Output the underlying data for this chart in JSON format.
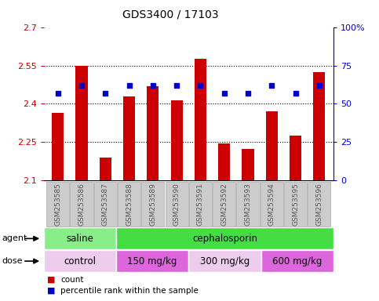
{
  "title": "GDS3400 / 17103",
  "samples": [
    "GSM253585",
    "GSM253586",
    "GSM253587",
    "GSM253588",
    "GSM253589",
    "GSM253590",
    "GSM253591",
    "GSM253592",
    "GSM253593",
    "GSM253594",
    "GSM253595",
    "GSM253596"
  ],
  "count_values": [
    2.365,
    2.55,
    2.19,
    2.43,
    2.47,
    2.415,
    2.575,
    2.245,
    2.225,
    2.37,
    2.275,
    2.525
  ],
  "percentile_values": [
    57,
    62,
    57,
    62,
    62,
    62,
    62,
    57,
    57,
    62,
    57,
    62
  ],
  "ylim_left": [
    2.1,
    2.7
  ],
  "ylim_right": [
    0,
    100
  ],
  "yticks_left": [
    2.1,
    2.25,
    2.4,
    2.55,
    2.7
  ],
  "yticks_right": [
    0,
    25,
    50,
    75,
    100
  ],
  "ytick_labels_left": [
    "2.1",
    "2.25",
    "2.4",
    "2.55",
    "2.7"
  ],
  "ytick_labels_right": [
    "0",
    "25",
    "50",
    "75",
    "100%"
  ],
  "grid_values": [
    2.25,
    2.4,
    2.55
  ],
  "bar_color": "#cc0000",
  "dot_color": "#0000cc",
  "bar_width": 0.5,
  "baseline": 2.1,
  "agent_groups": [
    {
      "label": "saline",
      "start": 0,
      "end": 3,
      "color": "#88ee88"
    },
    {
      "label": "cephalosporin",
      "start": 3,
      "end": 12,
      "color": "#44dd44"
    }
  ],
  "dose_groups": [
    {
      "label": "control",
      "start": 0,
      "end": 3,
      "color": "#eeccee"
    },
    {
      "label": "150 mg/kg",
      "start": 3,
      "end": 6,
      "color": "#dd66dd"
    },
    {
      "label": "300 mg/kg",
      "start": 6,
      "end": 9,
      "color": "#eeccee"
    },
    {
      "label": "600 mg/kg",
      "start": 9,
      "end": 12,
      "color": "#dd66dd"
    }
  ],
  "legend_count_label": "count",
  "legend_pct_label": "percentile rank within the sample",
  "xlabel_agent": "agent",
  "xlabel_dose": "dose",
  "tick_label_color": "#555555",
  "left_axis_color": "#cc0000",
  "right_axis_color": "#0000cc",
  "tick_box_color": "#cccccc",
  "tick_box_edge": "#aaaaaa"
}
